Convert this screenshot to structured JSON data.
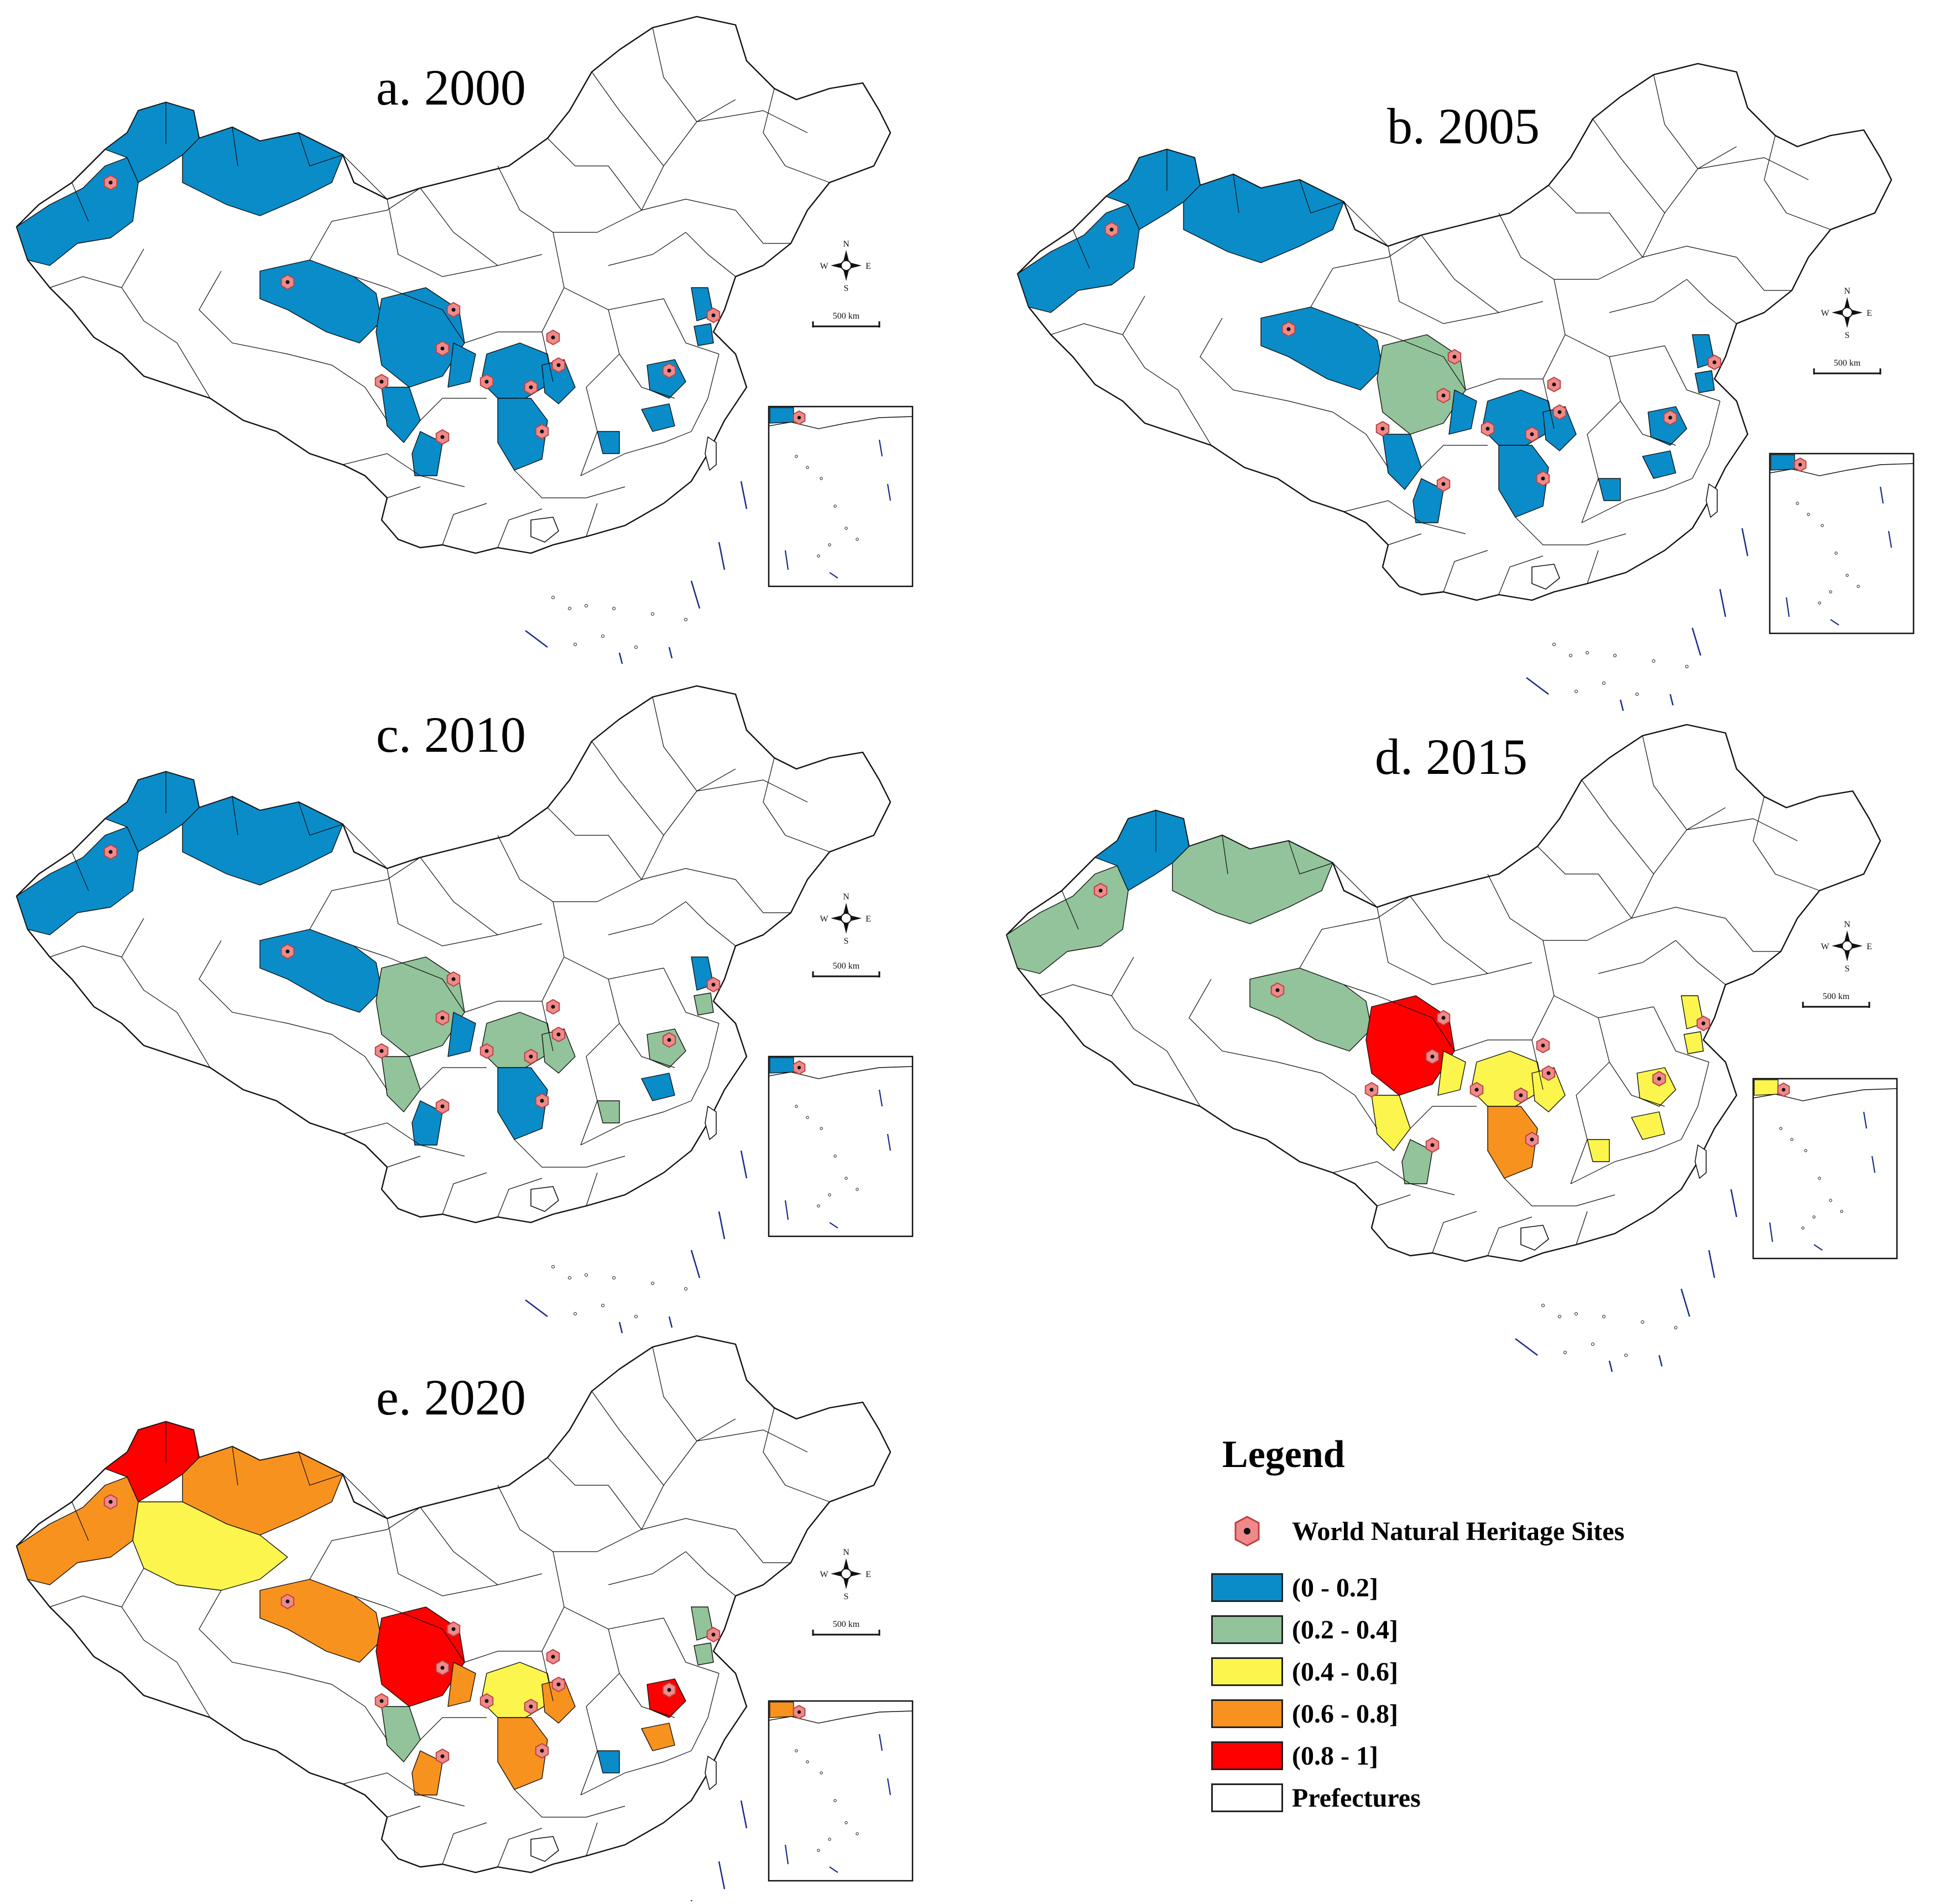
{
  "panels": [
    {
      "title": "a. 2000",
      "year": "2000",
      "regions": {
        "xj_west": 1,
        "xj_north": 1,
        "xj_northeast": 1,
        "xj_south": null,
        "qinghai": 1,
        "sichuan": 1,
        "sichuan_east": 1,
        "chongqing": 1,
        "guizhou": 1,
        "yunnan_n": 1,
        "yunnan_s": 1,
        "hunan": 1,
        "jiangxi": 1,
        "anhui": 1,
        "jiangsu": 1,
        "fujian": 1,
        "guangxi": 1,
        "hainan_inset": 1,
        "tibet_ne": null
      }
    },
    {
      "title": "b. 2005",
      "year": "2005",
      "regions": {
        "xj_west": 1,
        "xj_north": 1,
        "xj_northeast": 1,
        "xj_south": null,
        "qinghai": 1,
        "sichuan": 2,
        "sichuan_east": 1,
        "chongqing": 1,
        "guizhou": 1,
        "yunnan_n": 1,
        "yunnan_s": 1,
        "hunan": 1,
        "jiangxi": 1,
        "anhui": 1,
        "jiangsu": 1,
        "fujian": 1,
        "guangxi": 1,
        "hainan_inset": 1,
        "tibet_ne": null
      }
    },
    {
      "title": "c. 2010",
      "year": "2010",
      "regions": {
        "xj_west": 1,
        "xj_north": 1,
        "xj_northeast": 1,
        "xj_south": null,
        "qinghai": 1,
        "sichuan": 2,
        "sichuan_east": 1,
        "chongqing": 2,
        "guizhou": 1,
        "yunnan_n": 2,
        "yunnan_s": 1,
        "hunan": 2,
        "jiangxi": 2,
        "anhui": 1,
        "jiangsu": 2,
        "fujian": 1,
        "guangxi": 2,
        "hainan_inset": 1,
        "tibet_ne": null
      }
    },
    {
      "title": "d. 2015",
      "year": "2015",
      "regions": {
        "xj_west": 2,
        "xj_north": 1,
        "xj_northeast": 2,
        "xj_south": null,
        "qinghai": 2,
        "sichuan": 5,
        "sichuan_east": 3,
        "chongqing": 3,
        "guizhou": 4,
        "yunnan_n": 3,
        "yunnan_s": 2,
        "hunan": 3,
        "jiangxi": 3,
        "anhui": 3,
        "jiangsu": 3,
        "fujian": 3,
        "guangxi": 3,
        "hainan_inset": 3,
        "tibet_ne": null
      }
    },
    {
      "title": "e. 2020",
      "year": "2020",
      "regions": {
        "xj_west": 4,
        "xj_north": 5,
        "xj_northeast": 4,
        "xj_south": 3,
        "qinghai": 4,
        "sichuan": 5,
        "sichuan_east": 4,
        "chongqing": 3,
        "guizhou": 4,
        "yunnan_n": 2,
        "yunnan_s": 4,
        "hunan": 4,
        "jiangxi": 5,
        "anhui": 2,
        "jiangsu": 2,
        "fujian": 4,
        "guangxi": 1,
        "hainan_inset": 4,
        "tibet_ne": null
      }
    }
  ],
  "compass": {
    "n": "N",
    "s": "S",
    "e": "E",
    "w": "W"
  },
  "scale_bar": "500 km",
  "legend": {
    "title": "Legend",
    "site_label": "World Natural Heritage Sites",
    "classes": [
      {
        "label": "(0 - 0.2]",
        "color": "#0a8cc9"
      },
      {
        "label": "(0.2 - 0.4]",
        "color": "#92c39a"
      },
      {
        "label": "(0.4 - 0.6]",
        "color": "#fbf54e"
      },
      {
        "label": "(0.6 - 0.8]",
        "color": "#f8921f"
      },
      {
        "label": "(0.8 - 1]",
        "color": "#fe0000"
      }
    ],
    "prefectures_label": "Prefectures",
    "prefectures_color": "#ffffff"
  },
  "colors": {
    "outline": "#111111",
    "site_fill": "#f08a8a",
    "site_dot": "#111111",
    "dash": "#1a2a88"
  }
}
